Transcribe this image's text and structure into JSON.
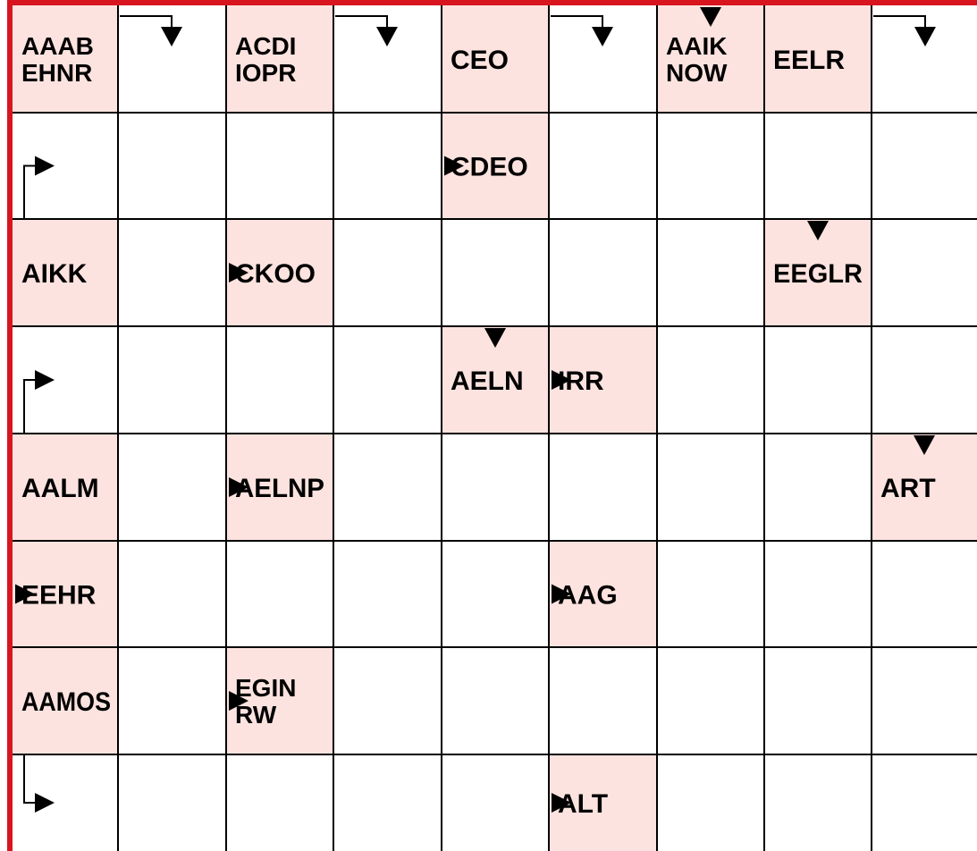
{
  "puzzle": {
    "colors": {
      "clue_fill": "#fde3df",
      "frame": "#d8151f",
      "grid_line": "#000000",
      "arrow": "#000000",
      "cell_fill": "#ffffff"
    },
    "clues": [
      {
        "id": "c-0-0",
        "row": 0,
        "col": 0,
        "lines": [
          "AAAB",
          "EHNR"
        ]
      },
      {
        "id": "c-0-2",
        "row": 0,
        "col": 2,
        "lines": [
          "ACDI",
          "IOPR"
        ]
      },
      {
        "id": "c-0-4",
        "row": 0,
        "col": 4,
        "lines": [
          "CEO"
        ]
      },
      {
        "id": "c-0-6",
        "row": 0,
        "col": 6,
        "lines": [
          "AAIK",
          "NOW"
        ]
      },
      {
        "id": "c-0-7",
        "row": 0,
        "col": 7,
        "lines": [
          "EELR"
        ]
      },
      {
        "id": "c-1-4",
        "row": 1,
        "col": 4,
        "lines": [
          "CDEO"
        ]
      },
      {
        "id": "c-2-0",
        "row": 2,
        "col": 0,
        "lines": [
          "AIKK"
        ]
      },
      {
        "id": "c-2-2",
        "row": 2,
        "col": 2,
        "lines": [
          "CKOO"
        ]
      },
      {
        "id": "c-2-7",
        "row": 2,
        "col": 7,
        "lines": [
          "EEGLR"
        ]
      },
      {
        "id": "c-3-4",
        "row": 3,
        "col": 4,
        "lines": [
          "AELN"
        ]
      },
      {
        "id": "c-3-5",
        "row": 3,
        "col": 5,
        "lines": [
          "IRR"
        ]
      },
      {
        "id": "c-4-0",
        "row": 4,
        "col": 0,
        "lines": [
          "AALM"
        ]
      },
      {
        "id": "c-4-2",
        "row": 4,
        "col": 2,
        "lines": [
          "AELNP"
        ]
      },
      {
        "id": "c-4-8",
        "row": 4,
        "col": 8,
        "lines": [
          "ART"
        ]
      },
      {
        "id": "c-5-0",
        "row": 5,
        "col": 0,
        "lines": [
          "EEHR"
        ]
      },
      {
        "id": "c-5-5",
        "row": 5,
        "col": 5,
        "lines": [
          "AAG"
        ]
      },
      {
        "id": "c-6-0",
        "row": 6,
        "col": 0,
        "lines": [
          "AAMOS"
        ]
      },
      {
        "id": "c-6-2",
        "row": 6,
        "col": 2,
        "lines": [
          "EGIN",
          "RW"
        ]
      },
      {
        "id": "c-7-5",
        "row": 7,
        "col": 5,
        "lines": [
          "ALT"
        ]
      }
    ],
    "arrows": [
      {
        "name": "right-arrow-icon",
        "type": "right",
        "row": 1,
        "col": 4
      },
      {
        "name": "right-arrow-icon",
        "type": "right",
        "row": 2,
        "col": 2
      },
      {
        "name": "right-arrow-icon",
        "type": "right",
        "row": 3,
        "col": 5
      },
      {
        "name": "right-arrow-icon",
        "type": "right",
        "row": 4,
        "col": 2
      },
      {
        "name": "right-arrow-icon",
        "type": "right",
        "row": 5,
        "col": 0
      },
      {
        "name": "right-arrow-icon",
        "type": "right",
        "row": 5,
        "col": 5
      },
      {
        "name": "right-arrow-icon",
        "type": "right",
        "row": 6,
        "col": 2
      },
      {
        "name": "right-arrow-icon",
        "type": "right",
        "row": 7,
        "col": 5
      },
      {
        "name": "down-arrow-icon",
        "type": "down",
        "row": 0,
        "col": 6
      },
      {
        "name": "down-arrow-icon",
        "type": "down",
        "row": 2,
        "col": 7
      },
      {
        "name": "down-arrow-icon",
        "type": "down",
        "row": 3,
        "col": 4
      },
      {
        "name": "down-arrow-icon",
        "type": "down",
        "row": 4,
        "col": 8
      },
      {
        "name": "bent-down-arrow-icon",
        "type": "top-right-down",
        "row": 0,
        "col": 1
      },
      {
        "name": "bent-down-arrow-icon",
        "type": "top-right-down",
        "row": 0,
        "col": 3
      },
      {
        "name": "bent-down-arrow-icon",
        "type": "top-right-down",
        "row": 0,
        "col": 5
      },
      {
        "name": "bent-down-arrow-icon",
        "type": "top-right-down",
        "row": 0,
        "col": 8
      },
      {
        "name": "bent-right-arrow-icon",
        "type": "up-right",
        "row": 1,
        "col": 0
      },
      {
        "name": "bent-right-arrow-icon",
        "type": "up-right",
        "row": 3,
        "col": 0
      },
      {
        "name": "bent-right-arrow-icon",
        "type": "down-right",
        "row": 7,
        "col": 0
      }
    ]
  }
}
